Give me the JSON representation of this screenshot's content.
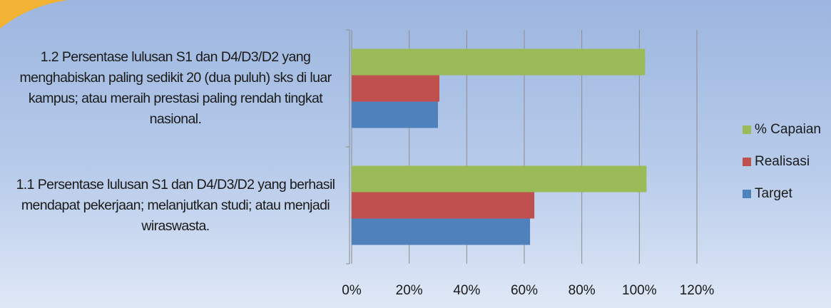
{
  "chart_data": {
    "type": "hbar",
    "categories": [
      "1.2 Persentase lulusan S1 dan D4/D3/D2 yang menghabiskan paling sedikit 20 (dua puluh) sks di luar kampus; atau meraih prestasi paling rendah tingkat nasional.",
      "1.1 Persentase lulusan S1 dan D4/D3/D2 yang berhasil mendapat pekerjaan; melanjutkan studi; atau menjadi wiraswasta."
    ],
    "series": [
      {
        "name": "% Capaian",
        "color": "#9bbb59",
        "values": [
          102,
          102.5
        ]
      },
      {
        "name": "Realisasi",
        "color": "#c0504d",
        "values": [
          30.5,
          63.5
        ]
      },
      {
        "name": "Target",
        "color": "#4f81bd",
        "values": [
          30,
          62
        ]
      }
    ],
    "xlim": [
      0,
      120
    ],
    "xticks": [
      {
        "value": 0,
        "label": "0%"
      },
      {
        "value": 20,
        "label": "20%"
      },
      {
        "value": 40,
        "label": "40%"
      },
      {
        "value": 60,
        "label": "60%"
      },
      {
        "value": 80,
        "label": "80%"
      },
      {
        "value": 100,
        "label": "100%"
      },
      {
        "value": 120,
        "label": "120%"
      }
    ],
    "grid": true,
    "legend": "right"
  }
}
